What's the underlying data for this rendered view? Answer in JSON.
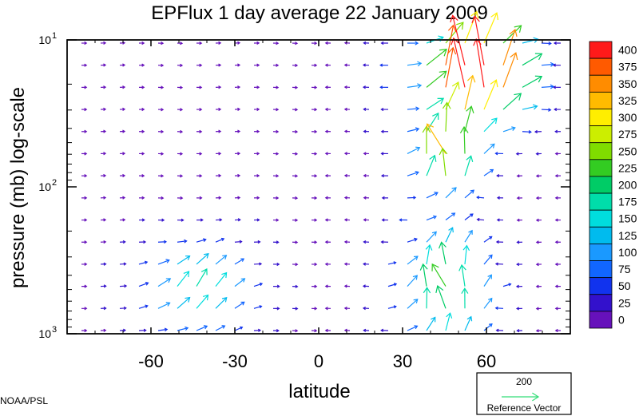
{
  "chart_data": {
    "type": "vector-field",
    "title": "EPFlux  1 day average  22 January   2009",
    "xlabel": "latitude",
    "ylabel": "pressure (mb)  log-scale",
    "xlim": [
      -90,
      90
    ],
    "ylim": [
      10,
      1000
    ],
    "yscale": "log",
    "x_ticks": [
      -60,
      -30,
      0,
      30,
      60
    ],
    "x_tick_labels": [
      "-60",
      "-30",
      "0",
      "30",
      "60"
    ],
    "y_ticks": [
      {
        "value": 10,
        "base": "10",
        "exp": "1"
      },
      {
        "value": 100,
        "base": "10",
        "exp": "2"
      },
      {
        "value": 1000,
        "base": "10",
        "exp": "3"
      }
    ],
    "colorbar": {
      "levels": [
        "400",
        "375",
        "350",
        "325",
        "300",
        "275",
        "250",
        "225",
        "200",
        "175",
        "150",
        "125",
        "100",
        "75",
        "50",
        "25",
        "0"
      ],
      "colors": [
        "#ff1a1a",
        "#ff5a00",
        "#ff8c00",
        "#ffbb00",
        "#ffee00",
        "#ccee00",
        "#80dd00",
        "#33cc22",
        "#00cc66",
        "#00ddaa",
        "#00dddd",
        "#00bbee",
        "#1a99ff",
        "#1166ff",
        "#1133ee",
        "#3311cc",
        "#6611bb"
      ]
    },
    "reference_vector": {
      "magnitude": "200",
      "label": "Reference Vector",
      "color": "#33dd77"
    }
  },
  "credit": "NOAA/PSL"
}
